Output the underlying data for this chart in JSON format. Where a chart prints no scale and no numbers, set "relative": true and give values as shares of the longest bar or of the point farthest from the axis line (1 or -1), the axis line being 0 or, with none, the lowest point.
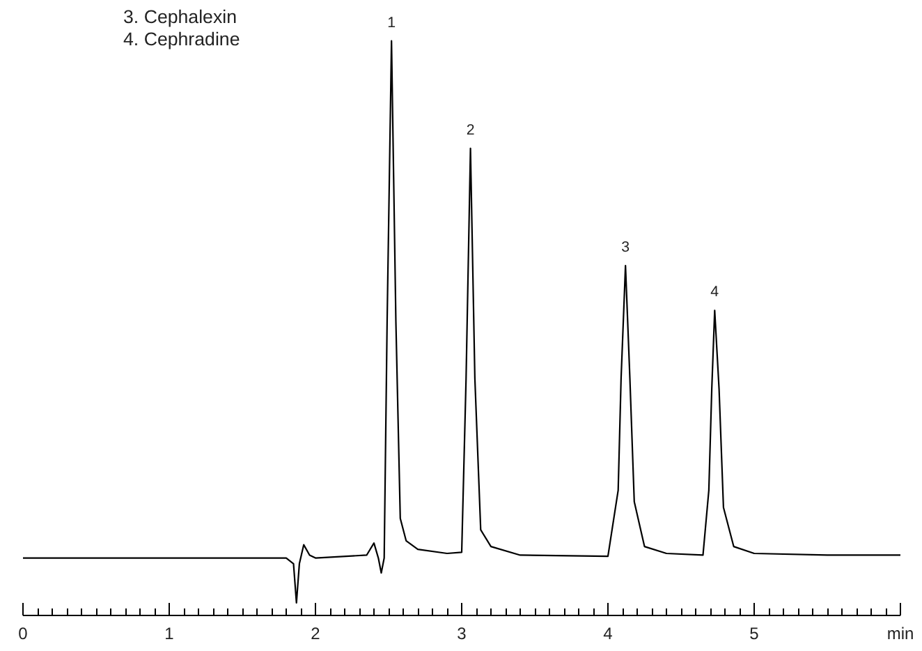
{
  "chart_data": {
    "type": "line",
    "relative": true,
    "x": [
      0,
      1.0,
      1.8,
      1.85,
      1.87,
      1.89,
      1.92,
      1.96,
      2.0,
      2.35,
      2.4,
      2.43,
      2.45,
      2.47,
      2.49,
      2.52,
      2.55,
      2.58,
      2.62,
      2.7,
      2.9,
      3.0,
      3.03,
      3.06,
      3.09,
      3.13,
      3.2,
      3.4,
      4.0,
      4.07,
      4.09,
      4.12,
      4.15,
      4.18,
      4.25,
      4.4,
      4.65,
      4.69,
      4.71,
      4.73,
      4.76,
      4.79,
      4.86,
      5.0,
      5.5,
      6.0
    ],
    "series": [
      {
        "color": "#000000",
        "values": [
          0.1,
          0.1,
          0.1,
          0.09,
          0.022,
          0.09,
          0.123,
          0.105,
          0.1,
          0.105,
          0.126,
          0.1,
          0.074,
          0.1,
          0.511,
          1,
          0.511,
          0.169,
          0.13,
          0.115,
          0.108,
          0.11,
          0.413,
          0.813,
          0.413,
          0.149,
          0.12,
          0.105,
          0.103,
          0.218,
          0.413,
          0.609,
          0.413,
          0.198,
          0.12,
          0.108,
          0.105,
          0.218,
          0.394,
          0.531,
          0.394,
          0.188,
          0.12,
          0.108,
          0.105,
          0.105
        ]
      }
    ],
    "xlim": [
      0,
      6
    ],
    "xticks": [
      0,
      1,
      2,
      3,
      4,
      5,
      {
        "value": 6,
        "label": "min"
      }
    ],
    "grid": false,
    "marker": "none",
    "line_style": "solid",
    "tick_labels": "x",
    "annotations": [
      {
        "text": "1",
        "x": 2.52,
        "y": 1
      },
      {
        "text": "2",
        "x": 3.06,
        "y": 0.813
      },
      {
        "text": "3",
        "x": 4.12,
        "y": 0.609
      },
      {
        "text": "4",
        "x": 4.73,
        "y": 0.531
      },
      "3. Cephalexin",
      "4. Cephradine"
    ]
  }
}
